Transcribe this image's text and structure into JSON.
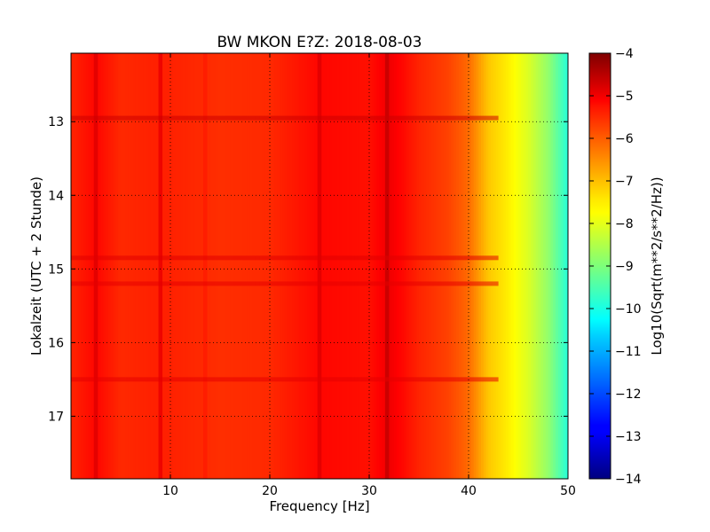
{
  "chart_data": {
    "type": "heatmap",
    "title": "BW MKON E?Z: 2018-08-03",
    "xlabel": "Frequency [Hz]",
    "ylabel": "Lokalzeit (UTC + 2 Stunde)",
    "xlim": [
      0,
      50
    ],
    "ylim": [
      12.07,
      17.85
    ],
    "y_inverted": true,
    "xticks": [
      10,
      20,
      30,
      40,
      50
    ],
    "yticks": [
      13,
      14,
      15,
      16,
      17
    ],
    "grid": true,
    "colormap": "jet",
    "colorbar": {
      "label": "Log10(Sqrt(m**2/s**2/Hz))",
      "range": [
        -14,
        -4
      ],
      "ticks": [
        -4,
        -5,
        -6,
        -7,
        -8,
        -9,
        -10,
        -11,
        -12,
        -13,
        -14
      ]
    },
    "spectrum_profile": {
      "frequency": [
        0,
        2.5,
        5,
        9,
        15,
        20,
        25,
        30,
        32,
        35,
        38,
        40,
        42,
        44,
        46,
        48,
        50
      ],
      "value": [
        -5.6,
        -5.3,
        -5.65,
        -5.55,
        -5.7,
        -5.65,
        -5.3,
        -5.4,
        -5.1,
        -5.6,
        -5.9,
        -6.3,
        -7.2,
        -7.6,
        -8.1,
        -8.8,
        -9.9
      ]
    },
    "line_features": [
      {
        "frequency": 2.5,
        "delta": 0.35
      },
      {
        "frequency": 9.0,
        "delta": 0.5
      },
      {
        "frequency": 13.5,
        "delta": 0.15
      },
      {
        "frequency": 25.0,
        "delta": 0.35
      },
      {
        "frequency": 31.8,
        "delta": 0.45
      }
    ],
    "time_features": [
      {
        "time": 12.95,
        "delta": 0.45
      },
      {
        "time": 14.85,
        "delta": 0.25
      },
      {
        "time": 15.2,
        "delta": 0.2
      },
      {
        "time": 16.5,
        "delta": 0.2
      }
    ]
  }
}
